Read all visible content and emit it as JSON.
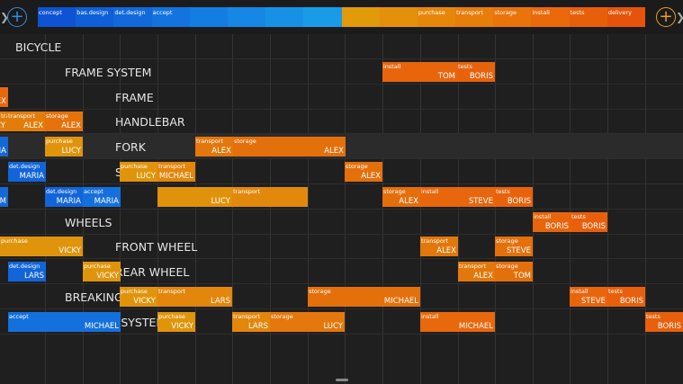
{
  "phases": [
    {
      "label": "concept",
      "color": "#0d53d4"
    },
    {
      "label": "bas.design",
      "color": "#0f5fd8"
    },
    {
      "label": "det.design",
      "color": "#1169dc"
    },
    {
      "label": "accept",
      "color": "#1373df"
    },
    {
      "label": "",
      "color": "#147de2"
    },
    {
      "label": "",
      "color": "#1687e4"
    },
    {
      "label": "",
      "color": "#1791e6"
    },
    {
      "label": "",
      "color": "#199be8"
    },
    {
      "label": "",
      "color": "#e09a0a"
    },
    {
      "label": "",
      "color": "#e4900a"
    },
    {
      "label": "purchase",
      "color": "#e6870a"
    },
    {
      "label": "transport",
      "color": "#e87d0a"
    },
    {
      "label": "storage",
      "color": "#ea730a"
    },
    {
      "label": "install",
      "color": "#ea690a"
    },
    {
      "label": "tests",
      "color": "#e85f0a"
    },
    {
      "label": "delivery",
      "color": "#e5540a"
    }
  ],
  "rows": [
    {
      "label": "BICYCLE",
      "indent": 17,
      "highlight": false,
      "bars": []
    },
    {
      "label": "FRAME SYSTEM",
      "indent": 72,
      "highlight": false,
      "bars": [
        {
          "x": 425,
          "w": 125,
          "segs": [
            {
              "label": "install",
              "owner": "TOM",
              "color": "#e8650c",
              "w": 83
            },
            {
              "label": "tests",
              "owner": "BORIS",
              "color": "#e8620c",
              "w": 42
            }
          ]
        }
      ]
    },
    {
      "label": "FRAME",
      "indent": 128,
      "highlight": false,
      "bars": [
        {
          "x": 0,
          "w": 9,
          "segs": [
            {
              "label": "",
              "owner": "EX",
              "color": "#e8680c",
              "w": 9
            }
          ]
        }
      ]
    },
    {
      "label": "HANDLEBAR",
      "indent": 128,
      "highlight": false,
      "bars": [
        {
          "x": 0,
          "w": 92,
          "segs": [
            {
              "label": "transport",
              "owner": "CY",
              "color": "#e27d0c",
              "w": 8
            },
            {
              "label": "transport",
              "owner": "ALEX",
              "color": "#e27d0c",
              "w": 42
            },
            {
              "label": "storage",
              "owner": "ALEX",
              "color": "#e4730c",
              "w": 42
            }
          ]
        }
      ]
    },
    {
      "label": "FORK",
      "indent": 128,
      "highlight": true,
      "bars": [
        {
          "x": 0,
          "w": 9,
          "segs": [
            {
              "label": "",
              "owner": "IA",
              "color": "#1569d6",
              "w": 9
            }
          ]
        },
        {
          "x": 50,
          "w": 42,
          "segs": [
            {
              "label": "purchase",
              "owner": "LUCY",
              "color": "#e0940c",
              "w": 42
            }
          ]
        },
        {
          "x": 217,
          "w": 167,
          "segs": [
            {
              "label": "transport",
              "owner": "ALEX",
              "color": "#e2780c",
              "w": 42
            },
            {
              "label": "storage",
              "owner": "ALEX",
              "color": "#e4700c",
              "w": 125
            }
          ]
        }
      ]
    },
    {
      "label": "SEAT",
      "indent": 128,
      "highlight": false,
      "bars": [
        {
          "x": 9,
          "w": 42,
          "segs": [
            {
              "label": "det.design",
              "owner": "MARIA",
              "color": "#1265d8",
              "w": 42
            }
          ]
        },
        {
          "x": 133,
          "w": 84,
          "segs": [
            {
              "label": "purchase",
              "owner": "LUCY",
              "color": "#e0940c",
              "w": 42
            },
            {
              "label": "transport",
              "owner": "MICHAEL",
              "color": "#e2860c",
              "w": 42
            }
          ]
        },
        {
          "x": 383,
          "w": 42,
          "segs": [
            {
              "label": "storage",
              "owner": "ALEX",
              "color": "#e4700c",
              "w": 42
            }
          ]
        }
      ]
    },
    {
      "label": "",
      "indent": 128,
      "highlight": false,
      "bars": [
        {
          "x": 0,
          "w": 9,
          "segs": [
            {
              "label": "",
              "owner": "OM",
              "color": "#1569d6",
              "w": 9
            }
          ]
        },
        {
          "x": 50,
          "w": 84,
          "segs": [
            {
              "label": "det.design",
              "owner": "MARIA",
              "color": "#1265d8",
              "w": 42
            },
            {
              "label": "accept",
              "owner": "MARIA",
              "color": "#1470dc",
              "w": 42
            }
          ]
        },
        {
          "x": 175,
          "w": 167,
          "segs": [
            {
              "label": "",
              "owner": "LUCY",
              "color": "#e0920c",
              "w": 83
            },
            {
              "label": "transport",
              "owner": "",
              "color": "#e2880c",
              "w": 84
            }
          ]
        },
        {
          "x": 425,
          "w": 167,
          "segs": [
            {
              "label": "storage",
              "owner": "ALEX",
              "color": "#e46e0c",
              "w": 42
            },
            {
              "label": "install",
              "owner": "STEVE",
              "color": "#e8660c",
              "w": 83
            },
            {
              "label": "tests",
              "owner": "BORIS",
              "color": "#e8620c",
              "w": 42
            }
          ]
        }
      ]
    },
    {
      "label": "WHEELS",
      "indent": 72,
      "highlight": false,
      "bars": [
        {
          "x": 592,
          "w": 83,
          "segs": [
            {
              "label": "install",
              "owner": "BORIS",
              "color": "#e8650c",
              "w": 42
            },
            {
              "label": "tests",
              "owner": "BORIS",
              "color": "#e8600c",
              "w": 41
            }
          ]
        }
      ]
    },
    {
      "label": "FRONT WHEEL",
      "indent": 128,
      "highlight": false,
      "bars": [
        {
          "x": 0,
          "w": 92,
          "segs": [
            {
              "label": "purchase",
              "owner": "VICKY",
              "color": "#e0940c",
              "w": 92
            }
          ]
        },
        {
          "x": 467,
          "w": 42,
          "segs": [
            {
              "label": "transport",
              "owner": "ALEX",
              "color": "#e2780c",
              "w": 42
            }
          ]
        },
        {
          "x": 550,
          "w": 42,
          "segs": [
            {
              "label": "storage",
              "owner": "STEVE",
              "color": "#e4700c",
              "w": 42
            }
          ]
        }
      ]
    },
    {
      "label": "REAR WHEEL",
      "indent": 128,
      "highlight": false,
      "bars": [
        {
          "x": 9,
          "w": 42,
          "segs": [
            {
              "label": "det.design",
              "owner": "LARS",
              "color": "#1265d8",
              "w": 42
            }
          ]
        },
        {
          "x": 92,
          "w": 42,
          "segs": [
            {
              "label": "purchase",
              "owner": "VICKY",
              "color": "#e0940c",
              "w": 42
            }
          ]
        },
        {
          "x": 509,
          "w": 83,
          "segs": [
            {
              "label": "transport",
              "owner": "ALEX",
              "color": "#e2780c",
              "w": 41
            },
            {
              "label": "storage",
              "owner": "TOM",
              "color": "#e4700c",
              "w": 42
            }
          ]
        }
      ]
    },
    {
      "label": "BREAKING SYSTEM",
      "indent": 72,
      "highlight": false,
      "bars": [
        {
          "x": 133,
          "w": 125,
          "segs": [
            {
              "label": "purchase",
              "owner": "VICKY",
              "color": "#e0940c",
              "w": 42
            },
            {
              "label": "transport",
              "owner": "LARS",
              "color": "#e2860c",
              "w": 83
            }
          ]
        },
        {
          "x": 342,
          "w": 125,
          "segs": [
            {
              "label": "storage",
              "owner": "MICHAEL",
              "color": "#e4700c",
              "w": 125
            }
          ]
        },
        {
          "x": 633,
          "w": 84,
          "segs": [
            {
              "label": "install",
              "owner": "STEVE",
              "color": "#e8650c",
              "w": 42
            },
            {
              "label": "tests",
              "owner": "BORIS",
              "color": "#e8600c",
              "w": 42
            }
          ]
        }
      ]
    },
    {
      "label": "SHIFTING SYSTEM",
      "indent": 72,
      "highlight": false,
      "bars": [
        {
          "x": 9,
          "w": 125,
          "segs": [
            {
              "label": "accept",
              "owner": "MICHAEL",
              "color": "#1470dc",
              "w": 125
            }
          ]
        },
        {
          "x": 175,
          "w": 42,
          "segs": [
            {
              "label": "purchase",
              "owner": "VICKY",
              "color": "#e0940c",
              "w": 42
            }
          ]
        },
        {
          "x": 258,
          "w": 125,
          "segs": [
            {
              "label": "transport",
              "owner": "LARS",
              "color": "#e2860c",
              "w": 42
            },
            {
              "label": "storage",
              "owner": "LUCY",
              "color": "#e4780c",
              "w": 83
            }
          ]
        },
        {
          "x": 467,
          "w": 83,
          "segs": [
            {
              "label": "install",
              "owner": "MICHAEL",
              "color": "#e8680c",
              "w": 83
            }
          ]
        },
        {
          "x": 717,
          "w": 42,
          "segs": [
            {
              "label": "tests",
              "owner": "BORIS",
              "color": "#e8600c",
              "w": 42
            }
          ]
        }
      ]
    }
  ]
}
